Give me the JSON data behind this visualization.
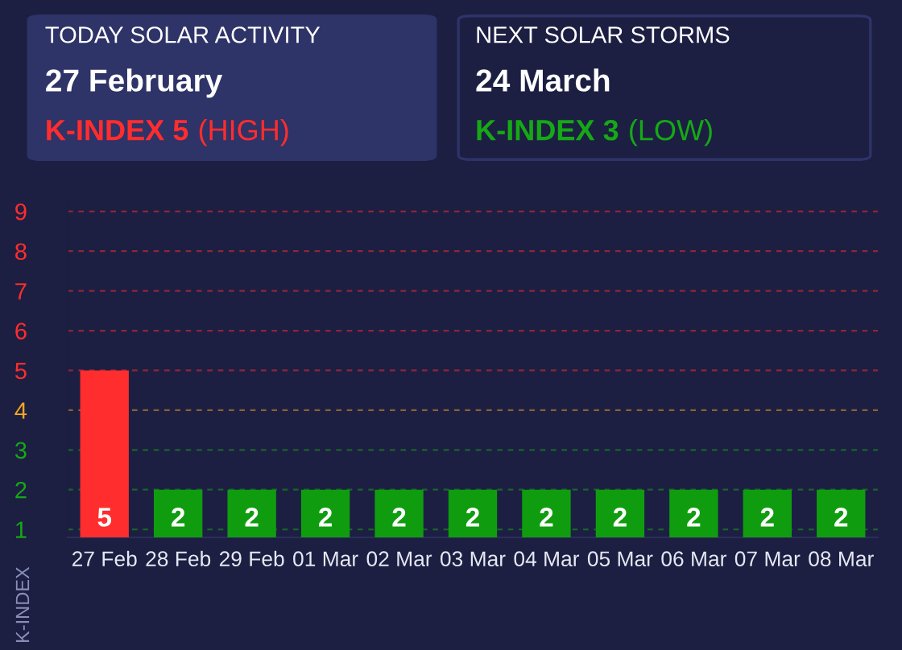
{
  "chart_data": [
    {
      "type": "other",
      "title": "TODAY SOLAR ACTIVITY",
      "subtitle": "27 February",
      "annotations": [
        "K-INDEX 5",
        "(HIGH)"
      ],
      "color": "#ff2d2d"
    },
    {
      "type": "other",
      "title": "NEXT SOLAR STORMS",
      "subtitle": "24 March",
      "annotations": [
        "K-INDEX 3",
        "(LOW)"
      ],
      "color": "#16a816"
    },
    {
      "type": "bar",
      "ylabel": "K-INDEX",
      "categories": [
        "27 Feb",
        "28 Feb",
        "29 Feb",
        "01 Mar",
        "02 Mar",
        "03 Mar",
        "04 Mar",
        "05 Mar",
        "06 Mar",
        "07 Mar",
        "08 Mar"
      ],
      "values": [
        5,
        2,
        2,
        2,
        2,
        2,
        2,
        2,
        2,
        2,
        2
      ],
      "colors": [
        "#ff2d2d",
        "#0f9d0f",
        "#0f9d0f",
        "#0f9d0f",
        "#0f9d0f",
        "#0f9d0f",
        "#0f9d0f",
        "#0f9d0f",
        "#0f9d0f",
        "#0f9d0f",
        "#0f9d0f"
      ],
      "data_labels": true,
      "ylim": [
        0.8,
        9.3
      ],
      "yticks": [
        1,
        2,
        3,
        4,
        5,
        6,
        7,
        8,
        9
      ],
      "ref_lines": [
        {
          "axis": "y",
          "value": 1,
          "color": "#16a816",
          "line_style": "dashed"
        },
        {
          "axis": "y",
          "value": 2,
          "color": "#16a816",
          "line_style": "dashed"
        },
        {
          "axis": "y",
          "value": 3,
          "color": "#16a816",
          "line_style": "dashed"
        },
        {
          "axis": "y",
          "value": 4,
          "color": "#f5a623",
          "line_style": "dashed"
        },
        {
          "axis": "y",
          "value": 5,
          "color": "#ff2d2d",
          "line_style": "dashed"
        },
        {
          "axis": "y",
          "value": 6,
          "color": "#ff2d2d",
          "line_style": "dashed"
        },
        {
          "axis": "y",
          "value": 7,
          "color": "#ff2d2d",
          "line_style": "dashed"
        },
        {
          "axis": "y",
          "value": 8,
          "color": "#ff2d2d",
          "line_style": "dashed"
        },
        {
          "axis": "y",
          "value": 9,
          "color": "#ff2d2d",
          "line_style": "dashed"
        }
      ],
      "grid": false,
      "legend": false
    }
  ]
}
